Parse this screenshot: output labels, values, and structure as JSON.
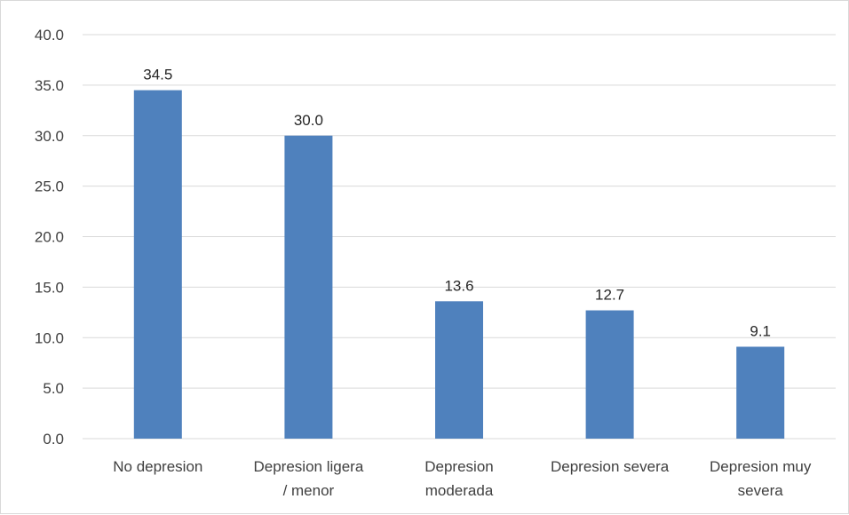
{
  "chart_data": {
    "type": "bar",
    "categories": [
      [
        "No depresion"
      ],
      [
        "Depresion ligera",
        "/ menor"
      ],
      [
        "Depresion",
        "moderada"
      ],
      [
        "Depresion severa"
      ],
      [
        "Depresion muy",
        "severa"
      ]
    ],
    "values": [
      34.5,
      30.0,
      13.6,
      12.7,
      9.1
    ],
    "value_labels": [
      "34.5",
      "30.0",
      "13.6",
      "12.7",
      "9.1"
    ],
    "ylim": [
      0,
      40
    ],
    "yticks": [
      "0.0",
      "5.0",
      "10.0",
      "15.0",
      "20.0",
      "25.0",
      "30.0",
      "35.0",
      "40.0"
    ],
    "title": "",
    "xlabel": "",
    "ylabel": "",
    "grid": true,
    "legend": "none",
    "colors": {
      "bar": "#4f81bd",
      "grid": "#d9d9d9",
      "text": "#404040",
      "data_label": "#262626"
    }
  }
}
